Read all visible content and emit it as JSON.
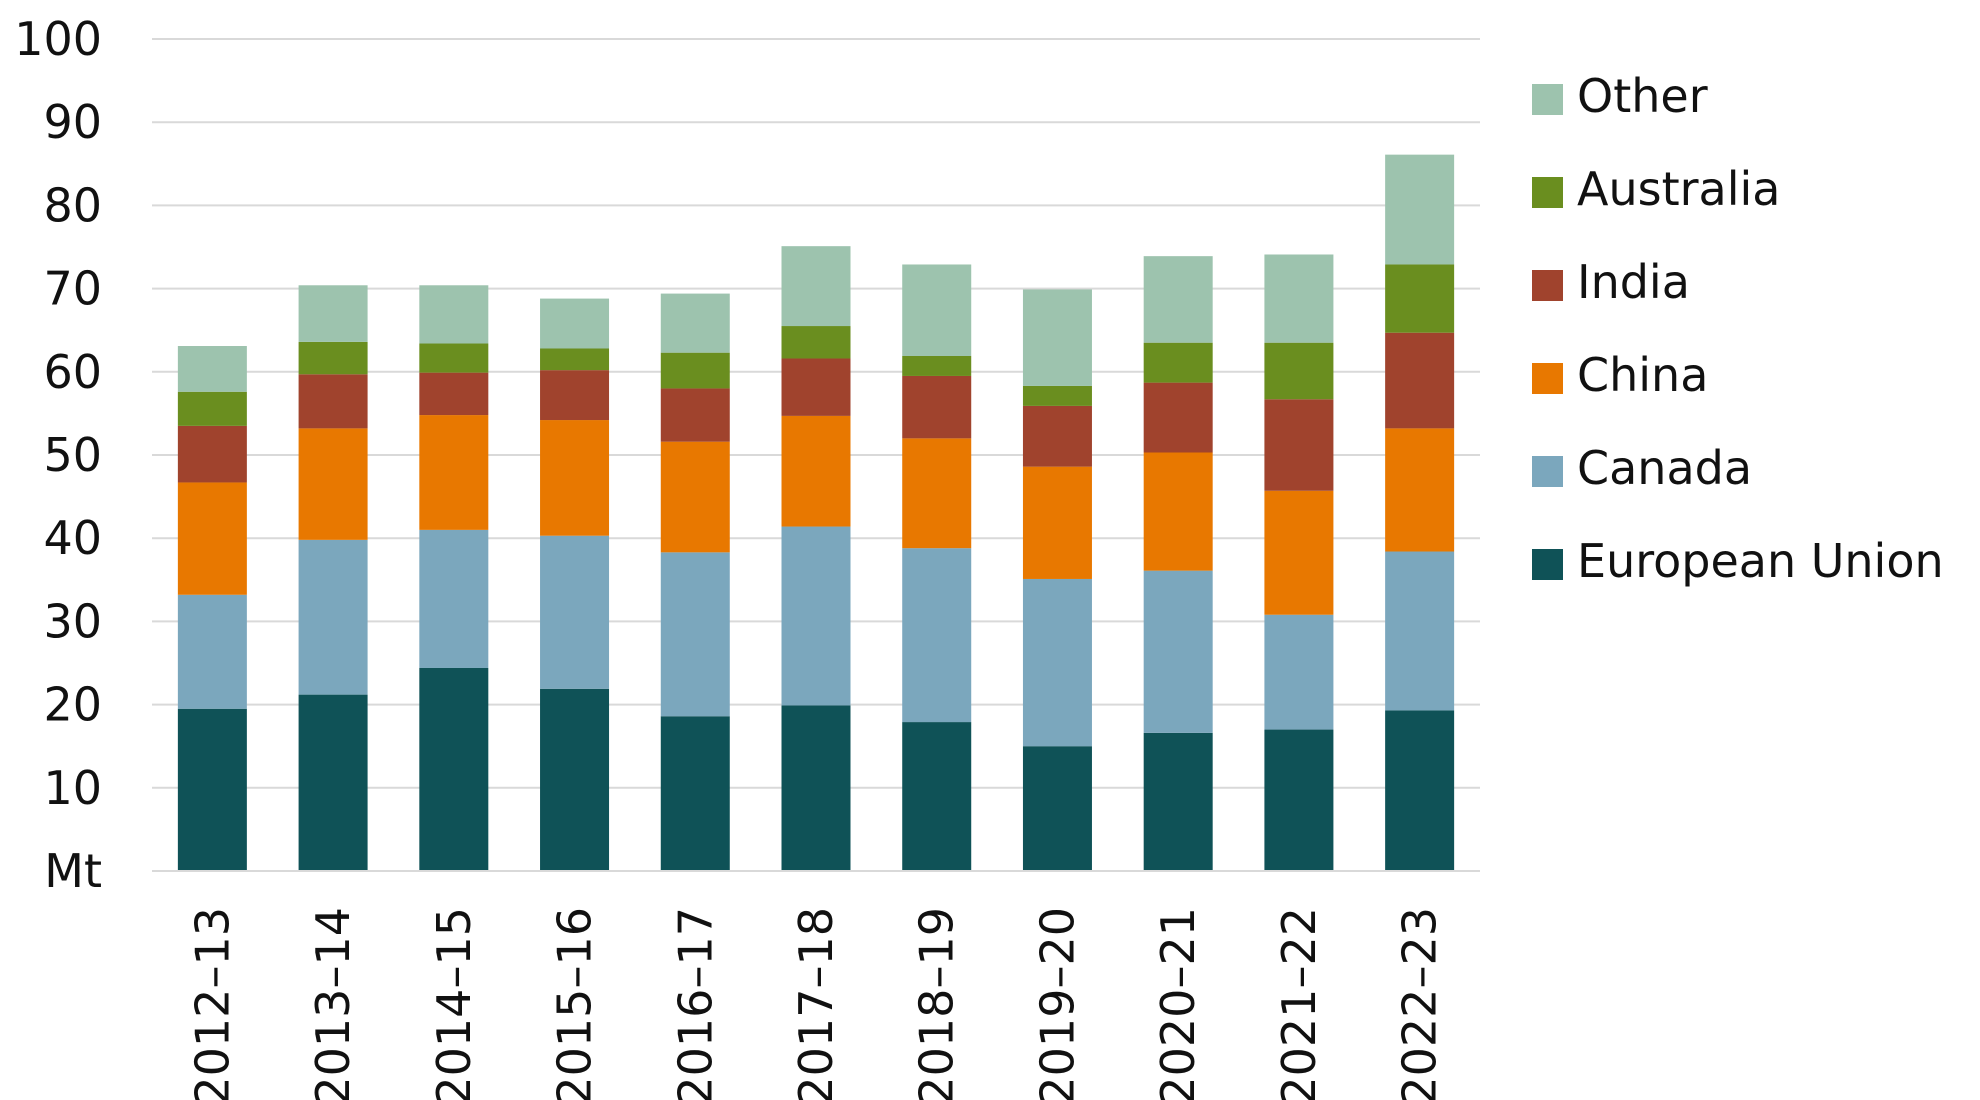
{
  "chart_data": {
    "type": "bar",
    "stacked": true,
    "title": "",
    "xlabel": "",
    "ylabel": "Mt",
    "ylim": [
      0,
      100
    ],
    "yticks": [
      10,
      20,
      30,
      40,
      50,
      60,
      70,
      80,
      90,
      100
    ],
    "grid": true,
    "legend_position": "right",
    "categories": [
      "2012–13",
      "2013–14",
      "2014–15",
      "2015–16",
      "2016–17",
      "2017–18",
      "2018–19",
      "2019–20",
      "2020–21",
      "2021–22",
      "2022–23"
    ],
    "series": [
      {
        "name": "European Union",
        "color": "#0f5257",
        "values": [
          19.5,
          21.2,
          24.4,
          21.9,
          18.6,
          19.9,
          17.9,
          15.0,
          16.6,
          17.0,
          19.3
        ]
      },
      {
        "name": "Canada",
        "color": "#7ba7bd",
        "values": [
          13.7,
          18.6,
          16.6,
          18.4,
          19.7,
          21.5,
          20.9,
          20.1,
          19.5,
          13.8,
          19.1
        ]
      },
      {
        "name": "China",
        "color": "#e87800",
        "values": [
          13.5,
          13.4,
          13.8,
          13.9,
          13.3,
          13.3,
          13.2,
          13.5,
          14.2,
          14.9,
          14.8
        ]
      },
      {
        "name": "India",
        "color": "#a0432d",
        "values": [
          6.8,
          6.5,
          5.1,
          6.0,
          6.4,
          6.9,
          7.5,
          7.3,
          8.4,
          11.0,
          11.5
        ]
      },
      {
        "name": "Australia",
        "color": "#6a8e1f",
        "values": [
          4.1,
          3.9,
          3.5,
          2.6,
          4.3,
          3.9,
          2.4,
          2.4,
          4.8,
          6.8,
          8.2
        ]
      },
      {
        "name": "Other",
        "color": "#9dc3ae",
        "values": [
          5.5,
          6.8,
          7.0,
          6.0,
          7.1,
          9.6,
          11.0,
          11.6,
          10.4,
          10.6,
          13.2
        ]
      }
    ],
    "legend_order": [
      "Other",
      "Australia",
      "India",
      "China",
      "Canada",
      "European Union"
    ]
  }
}
